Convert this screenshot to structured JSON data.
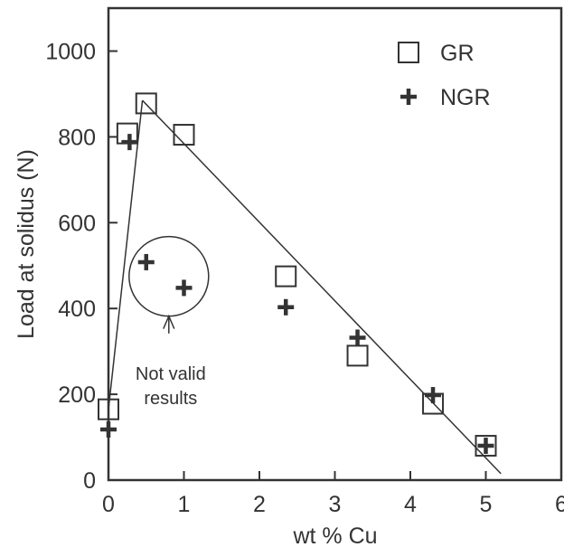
{
  "chart_data": {
    "type": "scatter",
    "title": "",
    "xlabel": "wt % Cu",
    "ylabel": "Load at solidus (N)",
    "xlim": [
      0,
      6
    ],
    "ylim": [
      0,
      1100
    ],
    "x_ticks": [
      "0",
      "1",
      "2",
      "3",
      "4",
      "5",
      "6"
    ],
    "y_ticks": [
      "0",
      "200",
      "400",
      "600",
      "800",
      "1000"
    ],
    "grid": false,
    "legend_position": "top-right",
    "series": [
      {
        "name": "GR",
        "marker": "open-square",
        "points": [
          {
            "x": 0.0,
            "y": 165
          },
          {
            "x": 0.25,
            "y": 808
          },
          {
            "x": 0.5,
            "y": 878
          },
          {
            "x": 1.0,
            "y": 805
          },
          {
            "x": 2.35,
            "y": 475
          },
          {
            "x": 3.3,
            "y": 290
          },
          {
            "x": 4.3,
            "y": 178
          },
          {
            "x": 5.0,
            "y": 80
          }
        ]
      },
      {
        "name": "NGR",
        "marker": "plus",
        "points": [
          {
            "x": 0.0,
            "y": 118
          },
          {
            "x": 0.28,
            "y": 788
          },
          {
            "x": 0.5,
            "y": 508
          },
          {
            "x": 1.0,
            "y": 448
          },
          {
            "x": 2.35,
            "y": 403
          },
          {
            "x": 3.3,
            "y": 332
          },
          {
            "x": 4.3,
            "y": 198
          },
          {
            "x": 5.0,
            "y": 80
          }
        ]
      }
    ],
    "trend_lines": [
      {
        "from": {
          "x": 0.0,
          "y": 165
        },
        "to": {
          "x": 0.45,
          "y": 885
        }
      },
      {
        "from": {
          "x": 0.45,
          "y": 885
        },
        "to": {
          "x": 5.2,
          "y": 15
        }
      }
    ],
    "annotations": [
      {
        "text_lines": [
          "Not valid",
          "results"
        ],
        "circle_center": {
          "x": 0.8,
          "y": 475
        },
        "points_to": {
          "x": 0.8,
          "y": 405
        }
      }
    ]
  },
  "colors": {
    "ink": "#333333",
    "background": "#ffffff"
  }
}
